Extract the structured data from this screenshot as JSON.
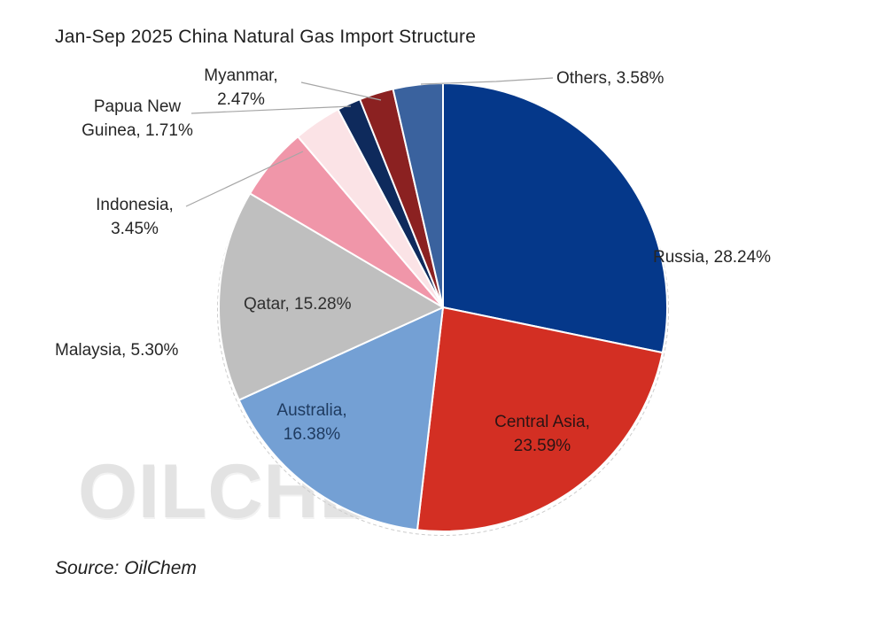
{
  "title": "Jan-Sep 2025 China Natural Gas Import Structure",
  "source": "Source: OilChem",
  "watermark": "OILCHEM",
  "chart_data": {
    "type": "pie",
    "title": "Jan-Sep 2025 China Natural Gas Import Structure",
    "unit": "%",
    "order": "clockwise-from-12-oclock",
    "legend": "none",
    "slices": [
      {
        "label": "Russia",
        "value": 28.24,
        "color": "#05388A",
        "display_lines": [
          "Russia, 28.24%"
        ],
        "label_placement": "outside-right",
        "label_color": "#262626"
      },
      {
        "label": "Central Asia",
        "value": 23.59,
        "color": "#D32F23",
        "display_lines": [
          "Central Asia,",
          "23.59%"
        ],
        "label_placement": "inside",
        "label_color": "#2B1414"
      },
      {
        "label": "Australia",
        "value": 16.38,
        "color": "#74A0D4",
        "display_lines": [
          "Australia,",
          "16.38%"
        ],
        "label_placement": "inside",
        "label_color": "#1E3A5F"
      },
      {
        "label": "Qatar",
        "value": 15.28,
        "color": "#BFBFBF",
        "display_lines": [
          "Qatar, 15.28%"
        ],
        "label_placement": "inside",
        "label_color": "#303030"
      },
      {
        "label": "Malaysia",
        "value": 5.3,
        "color": "#F096A9",
        "display_lines": [
          "Malaysia, 5.30%"
        ],
        "label_placement": "outside-left",
        "label_color": "#262626"
      },
      {
        "label": "Indonesia",
        "value": 3.45,
        "color": "#FBE3E6",
        "display_lines": [
          "Indonesia,",
          "3.45%"
        ],
        "label_placement": "outside-left",
        "label_color": "#262626"
      },
      {
        "label": "Papua New Guinea",
        "value": 1.71,
        "color": "#0E2A5C",
        "display_lines": [
          "Papua New",
          "Guinea, 1.71%"
        ],
        "label_placement": "outside-left",
        "label_color": "#262626"
      },
      {
        "label": "Myanmar",
        "value": 2.47,
        "color": "#8B2121",
        "display_lines": [
          "Myanmar,",
          "2.47%"
        ],
        "label_placement": "outside-top",
        "label_color": "#262626"
      },
      {
        "label": "Others",
        "value": 3.58,
        "color": "#3A629E",
        "display_lines": [
          "Others, 3.58%"
        ],
        "label_placement": "outside-top-right",
        "label_color": "#262626"
      }
    ]
  }
}
